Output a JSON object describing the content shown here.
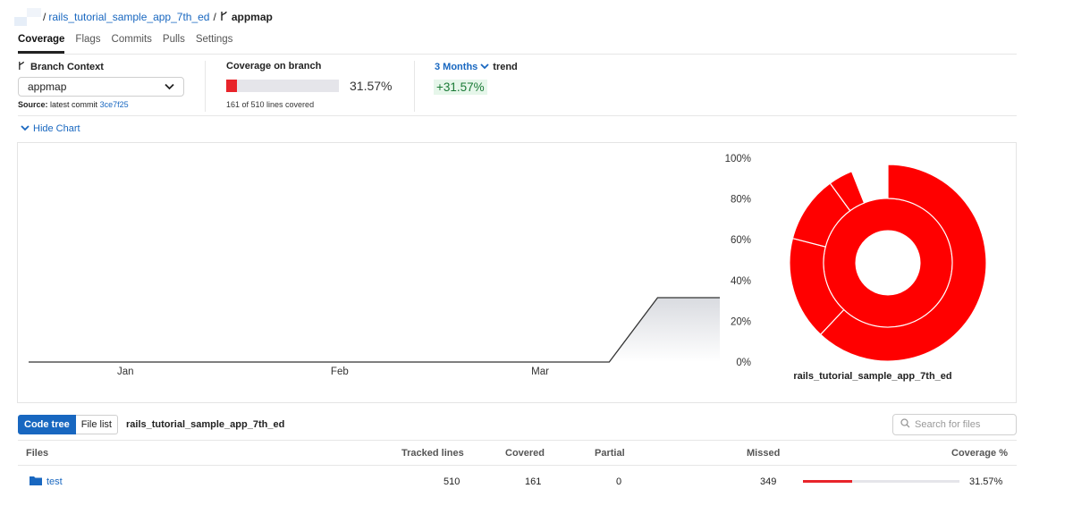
{
  "breadcrumb": {
    "repo": "rails_tutorial_sample_app_7th_ed",
    "separator": "/",
    "branch": "appmap"
  },
  "tabs": [
    {
      "label": "Coverage",
      "active": true
    },
    {
      "label": "Flags",
      "active": false
    },
    {
      "label": "Commits",
      "active": false
    },
    {
      "label": "Pulls",
      "active": false
    },
    {
      "label": "Settings",
      "active": false
    }
  ],
  "branch_context": {
    "title": "Branch Context",
    "selected": "appmap",
    "source_label": "Source:",
    "source_text": "latest commit",
    "commit": "3ce7f25"
  },
  "coverage_on_branch": {
    "title": "Coverage on branch",
    "percent_text": "31.57%",
    "percent": 31.57,
    "lines_text": "161 of 510 lines covered"
  },
  "trend": {
    "period": "3 Months",
    "label": "trend",
    "value": "+31.57%"
  },
  "hide_chart_label": "Hide Chart",
  "chart_data": [
    {
      "type": "area",
      "x": [
        "Jan",
        "Feb",
        "Mar"
      ],
      "y_ticks": [
        "100%",
        "80%",
        "60%",
        "40%",
        "20%",
        "0%"
      ],
      "ylim": [
        0,
        100
      ],
      "series": [
        {
          "points": [
            {
              "x": "2024-01-01",
              "y": 0
            },
            {
              "x": "2024-03-25",
              "y": 0
            },
            {
              "x": "2024-04-01",
              "y": 31.57
            },
            {
              "x": "2024-04-10",
              "y": 31.57
            }
          ]
        }
      ]
    },
    {
      "type": "pie",
      "title": "rails_tutorial_sample_app_7th_ed",
      "rings": [
        {
          "ring": "inner",
          "segments": [
            100
          ]
        },
        {
          "ring": "outer",
          "segments": [
            62,
            17,
            11,
            4,
            3
          ]
        }
      ],
      "color": "#ff0000"
    }
  ],
  "tree": {
    "code_tree_label": "Code tree",
    "file_list_label": "File list",
    "repo_name": "rails_tutorial_sample_app_7th_ed",
    "search_placeholder": "Search for files",
    "columns": [
      "Files",
      "Tracked lines",
      "Covered",
      "Partial",
      "Missed",
      "Coverage %"
    ],
    "rows": [
      {
        "name": "test",
        "tracked": "510",
        "covered": "161",
        "partial": "0",
        "missed": "349",
        "coverage_text": "31.57%",
        "coverage": 31.57
      }
    ]
  },
  "colors": {
    "accent": "#1867c0",
    "coverage_bar": "#e8242a",
    "trend_bg": "#e6f6ea",
    "trend_fg": "#1a7a36",
    "sunburst": "#ff0000"
  }
}
